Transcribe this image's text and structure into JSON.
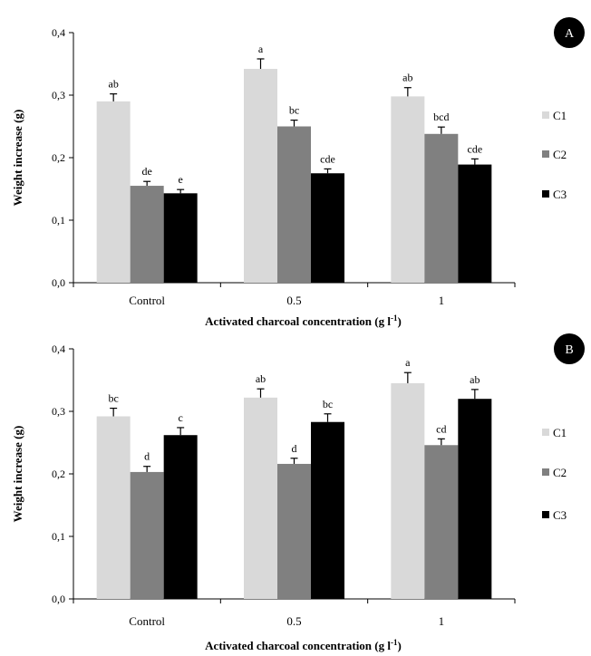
{
  "chart_data": [
    {
      "type": "bar",
      "panel_label": "A",
      "categories": [
        "Control",
        "0.5",
        "1"
      ],
      "xlabel": "Activated charcoal concentration (g l",
      "xlabel_sup": "-1",
      "xlabel_close": ")",
      "ylabel": "Weight increase (g)",
      "ylim": [
        0,
        0.4
      ],
      "yticks": [
        "0,0",
        "0,1",
        "0,2",
        "0,3",
        "0,4"
      ],
      "ytick_values": [
        0,
        0.1,
        0.2,
        0.3,
        0.4
      ],
      "grid": false,
      "legend_position": "right",
      "series": [
        {
          "name": "C1",
          "color": "#d9d9d9",
          "values": [
            0.29,
            0.342,
            0.298
          ],
          "errors": [
            0.012,
            0.016,
            0.014
          ],
          "letters": [
            "ab",
            "a",
            "ab"
          ]
        },
        {
          "name": "C2",
          "color": "#808080",
          "values": [
            0.155,
            0.25,
            0.238
          ],
          "errors": [
            0.007,
            0.01,
            0.011
          ],
          "letters": [
            "de",
            "bc",
            "bcd"
          ]
        },
        {
          "name": "C3",
          "color": "#000000",
          "values": [
            0.143,
            0.175,
            0.189
          ],
          "errors": [
            0.006,
            0.007,
            0.009
          ],
          "letters": [
            "e",
            "cde",
            "cde"
          ]
        }
      ]
    },
    {
      "type": "bar",
      "panel_label": "B",
      "categories": [
        "Control",
        "0.5",
        "1"
      ],
      "xlabel": "Activated charcoal concentration (g l",
      "xlabel_sup": "-1",
      "xlabel_close": ")",
      "ylabel": "Weight increase (g)",
      "ylim": [
        0,
        0.4
      ],
      "yticks": [
        "0,0",
        "0,1",
        "0,2",
        "0,3",
        "0,4"
      ],
      "ytick_values": [
        0,
        0.1,
        0.2,
        0.3,
        0.4
      ],
      "grid": false,
      "legend_position": "right",
      "series": [
        {
          "name": "C1",
          "color": "#d9d9d9",
          "values": [
            0.292,
            0.322,
            0.345
          ],
          "errors": [
            0.013,
            0.014,
            0.017
          ],
          "letters": [
            "bc",
            "ab",
            "a"
          ]
        },
        {
          "name": "C2",
          "color": "#808080",
          "values": [
            0.203,
            0.216,
            0.246
          ],
          "errors": [
            0.009,
            0.009,
            0.01
          ],
          "letters": [
            "d",
            "d",
            "cd"
          ]
        },
        {
          "name": "C3",
          "color": "#000000",
          "values": [
            0.262,
            0.283,
            0.32
          ],
          "errors": [
            0.012,
            0.013,
            0.015
          ],
          "letters": [
            "c",
            "bc",
            "ab"
          ]
        }
      ]
    }
  ]
}
